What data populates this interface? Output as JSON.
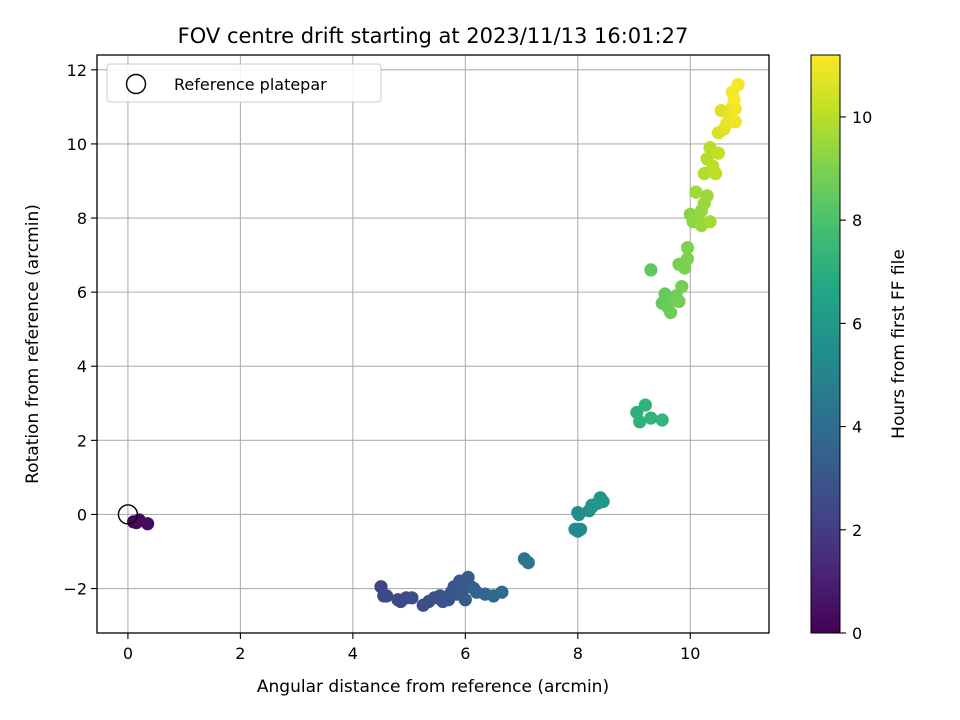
{
  "chart_data": {
    "type": "scatter",
    "title": "FOV centre drift starting at 2023/11/13 16:01:27",
    "xlabel": "Angular distance from reference (arcmin)",
    "ylabel": "Rotation from reference (arcmin)",
    "xlim": [
      -0.55,
      11.4
    ],
    "ylim": [
      -3.2,
      12.4
    ],
    "xticks": [
      0,
      2,
      4,
      6,
      8,
      10
    ],
    "yticks": [
      -2,
      0,
      2,
      4,
      6,
      8,
      10,
      12
    ],
    "grid": true,
    "legend": {
      "position": "top-left",
      "entries": [
        {
          "label": "Reference platepar",
          "marker": "open-circle"
        }
      ]
    },
    "reference_point": {
      "x": 0,
      "y": 0
    },
    "colorbar": {
      "label": "Hours from first FF file",
      "colormap": "viridis",
      "range": [
        0,
        11.2
      ],
      "ticks": [
        0,
        2,
        4,
        6,
        8,
        10
      ]
    },
    "points": [
      [
        0.1,
        -0.2,
        0.1
      ],
      [
        0.2,
        -0.15,
        0.2
      ],
      [
        0.35,
        -0.25,
        0.35
      ],
      [
        0.15,
        -0.22,
        0.3
      ],
      [
        4.5,
        -1.95,
        2.3
      ],
      [
        4.55,
        -2.2,
        2.35
      ],
      [
        4.6,
        -2.2,
        2.4
      ],
      [
        4.8,
        -2.3,
        2.45
      ],
      [
        4.85,
        -2.35,
        2.5
      ],
      [
        4.95,
        -2.25,
        2.55
      ],
      [
        5.05,
        -2.25,
        2.6
      ],
      [
        5.25,
        -2.45,
        2.65
      ],
      [
        5.35,
        -2.35,
        2.7
      ],
      [
        5.45,
        -2.25,
        2.75
      ],
      [
        5.55,
        -2.2,
        2.8
      ],
      [
        5.6,
        -2.35,
        2.85
      ],
      [
        5.7,
        -2.3,
        2.9
      ],
      [
        5.75,
        -2.1,
        2.95
      ],
      [
        5.8,
        -1.95,
        3.0
      ],
      [
        5.85,
        -2.15,
        3.05
      ],
      [
        5.9,
        -1.8,
        3.1
      ],
      [
        5.95,
        -2.05,
        3.15
      ],
      [
        6.0,
        -2.3,
        3.2
      ],
      [
        6.05,
        -1.7,
        3.25
      ],
      [
        6.1,
        -1.95,
        3.3
      ],
      [
        6.15,
        -2.0,
        3.4
      ],
      [
        6.2,
        -2.1,
        3.5
      ],
      [
        6.35,
        -2.15,
        3.65
      ],
      [
        6.5,
        -2.2,
        3.8
      ],
      [
        6.65,
        -2.1,
        3.95
      ],
      [
        7.05,
        -1.2,
        4.3
      ],
      [
        7.12,
        -1.3,
        4.4
      ],
      [
        7.95,
        -0.4,
        5.2
      ],
      [
        8.0,
        -0.45,
        5.25
      ],
      [
        8.05,
        -0.4,
        5.3
      ],
      [
        8.0,
        0.05,
        5.35
      ],
      [
        8.02,
        0.0,
        5.4
      ],
      [
        8.2,
        0.1,
        5.5
      ],
      [
        8.25,
        0.25,
        5.6
      ],
      [
        8.35,
        0.3,
        5.7
      ],
      [
        8.4,
        0.45,
        5.8
      ],
      [
        8.45,
        0.35,
        5.9
      ],
      [
        8.25,
        0.2,
        5.95
      ],
      [
        9.05,
        2.75,
        7.1
      ],
      [
        9.1,
        2.5,
        7.15
      ],
      [
        9.2,
        2.95,
        7.2
      ],
      [
        9.3,
        2.6,
        7.25
      ],
      [
        9.5,
        2.55,
        7.3
      ],
      [
        9.3,
        6.6,
        8.4
      ],
      [
        9.5,
        5.7,
        8.5
      ],
      [
        9.55,
        5.95,
        8.55
      ],
      [
        9.6,
        5.6,
        8.6
      ],
      [
        9.65,
        5.45,
        8.65
      ],
      [
        9.7,
        5.8,
        8.7
      ],
      [
        9.75,
        5.9,
        8.75
      ],
      [
        9.8,
        5.75,
        8.8
      ],
      [
        9.85,
        6.15,
        8.85
      ],
      [
        9.8,
        6.75,
        8.9
      ],
      [
        9.9,
        6.65,
        8.95
      ],
      [
        9.95,
        6.9,
        9.0
      ],
      [
        9.95,
        7.2,
        9.05
      ],
      [
        10.0,
        8.1,
        9.2
      ],
      [
        10.05,
        7.9,
        9.25
      ],
      [
        10.1,
        7.95,
        9.3
      ],
      [
        10.15,
        8.0,
        9.35
      ],
      [
        10.2,
        8.2,
        9.4
      ],
      [
        10.2,
        7.8,
        9.45
      ],
      [
        10.25,
        8.4,
        9.5
      ],
      [
        10.3,
        8.6,
        9.55
      ],
      [
        10.1,
        8.7,
        9.6
      ],
      [
        10.35,
        7.9,
        9.65
      ],
      [
        10.25,
        9.2,
        9.9
      ],
      [
        10.3,
        9.6,
        9.95
      ],
      [
        10.35,
        9.9,
        10.0
      ],
      [
        10.4,
        9.4,
        10.05
      ],
      [
        10.45,
        9.2,
        10.1
      ],
      [
        10.5,
        9.75,
        10.15
      ],
      [
        10.5,
        10.3,
        10.5
      ],
      [
        10.55,
        10.9,
        10.6
      ],
      [
        10.6,
        10.4,
        10.7
      ],
      [
        10.65,
        10.55,
        10.8
      ],
      [
        10.7,
        10.75,
        10.85
      ],
      [
        10.75,
        11.0,
        10.9
      ],
      [
        10.8,
        10.6,
        10.95
      ],
      [
        10.75,
        11.4,
        11.0
      ],
      [
        10.8,
        10.95,
        11.05
      ],
      [
        10.85,
        11.6,
        11.1
      ],
      [
        10.78,
        11.2,
        11.15
      ]
    ]
  }
}
